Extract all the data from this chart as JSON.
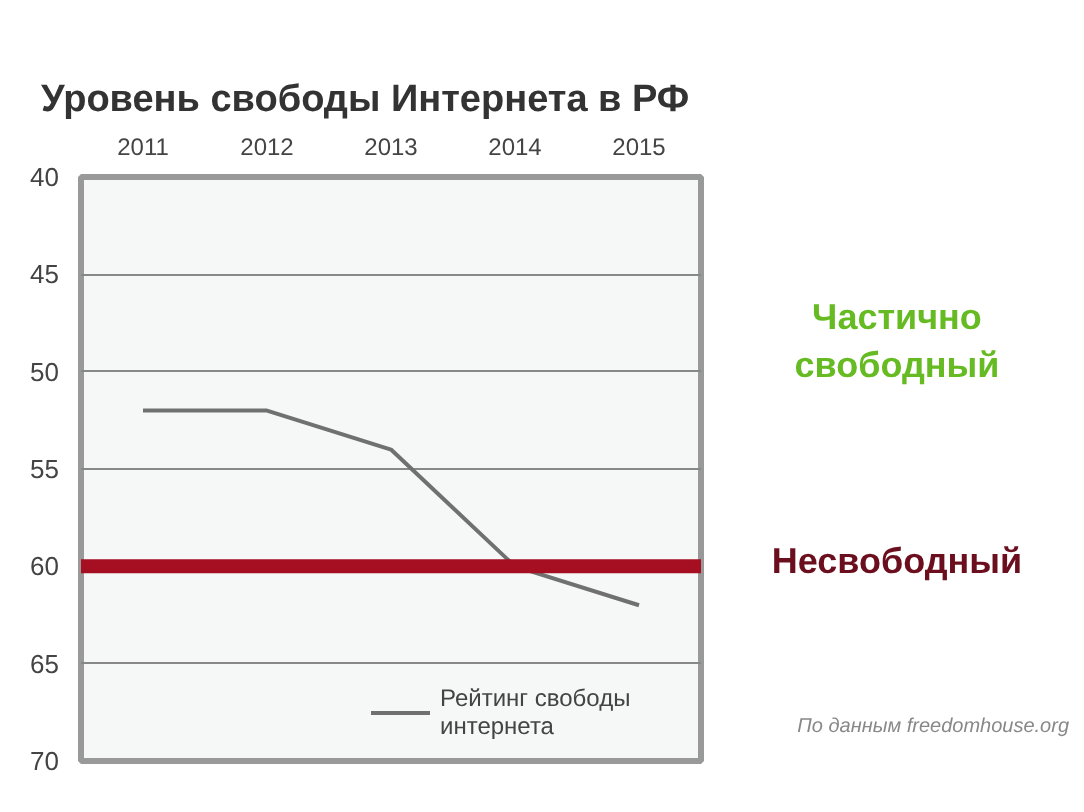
{
  "chart_data": {
    "type": "line",
    "title": "Уровень свободы Интернета в РФ",
    "categories": [
      "2011",
      "2012",
      "2013",
      "2014",
      "2015"
    ],
    "series": [
      {
        "name": "Рейтинг свободы интернета",
        "color": "#707070",
        "values": [
          52,
          52,
          54,
          60,
          62
        ]
      }
    ],
    "ylim": [
      70,
      40
    ],
    "yticks": [
      40,
      45,
      50,
      55,
      60,
      65,
      70
    ],
    "grid": "y",
    "legend": "bottom right",
    "ref_lines": [
      {
        "axis": "y",
        "value": 60,
        "color": "#a50f21"
      }
    ],
    "annotations": [
      "Частично свободный",
      "Несвободный",
      "По данным freedomhouse.org"
    ]
  }
}
